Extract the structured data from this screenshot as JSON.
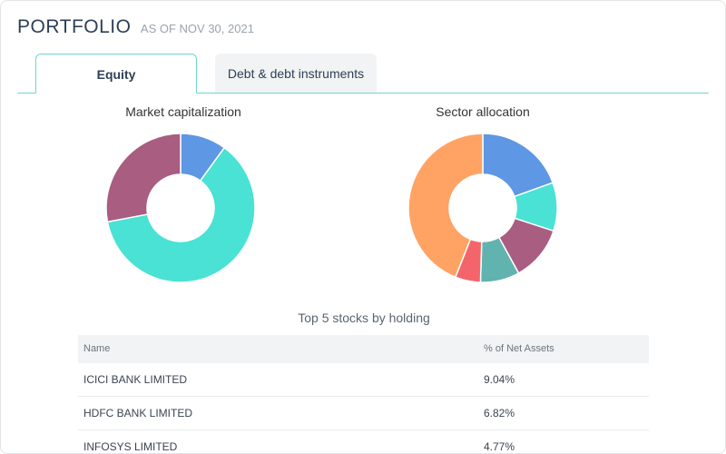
{
  "header": {
    "title": "PORTFOLIO",
    "as_of": "AS OF NOV 30, 2021"
  },
  "tabs": [
    {
      "label": "Equity",
      "active": true
    },
    {
      "label": "Debt & debt instruments",
      "active": false
    }
  ],
  "charts": {
    "market_cap": {
      "title": "Market capitalization",
      "colors": [
        "#5e97e3",
        "#49e2d4",
        "#a95d80"
      ],
      "values": [
        10,
        62,
        28
      ]
    },
    "sector": {
      "title": "Sector allocation",
      "colors": [
        "#5e97e3",
        "#49e2d4",
        "#a95d80",
        "#61b3b0",
        "#f4656b",
        "#ffa365"
      ],
      "values": [
        19.5,
        10.5,
        12,
        8.5,
        5.5,
        44
      ]
    }
  },
  "table": {
    "title": "Top 5 stocks by holding",
    "columns": [
      "Name",
      "% of Net Assets"
    ],
    "rows": [
      {
        "name": "ICICI BANK LIMITED",
        "pct": "9.04%"
      },
      {
        "name": "HDFC BANK LIMITED",
        "pct": "6.82%"
      },
      {
        "name": "INFOSYS LIMITED",
        "pct": "4.77%"
      }
    ]
  }
}
